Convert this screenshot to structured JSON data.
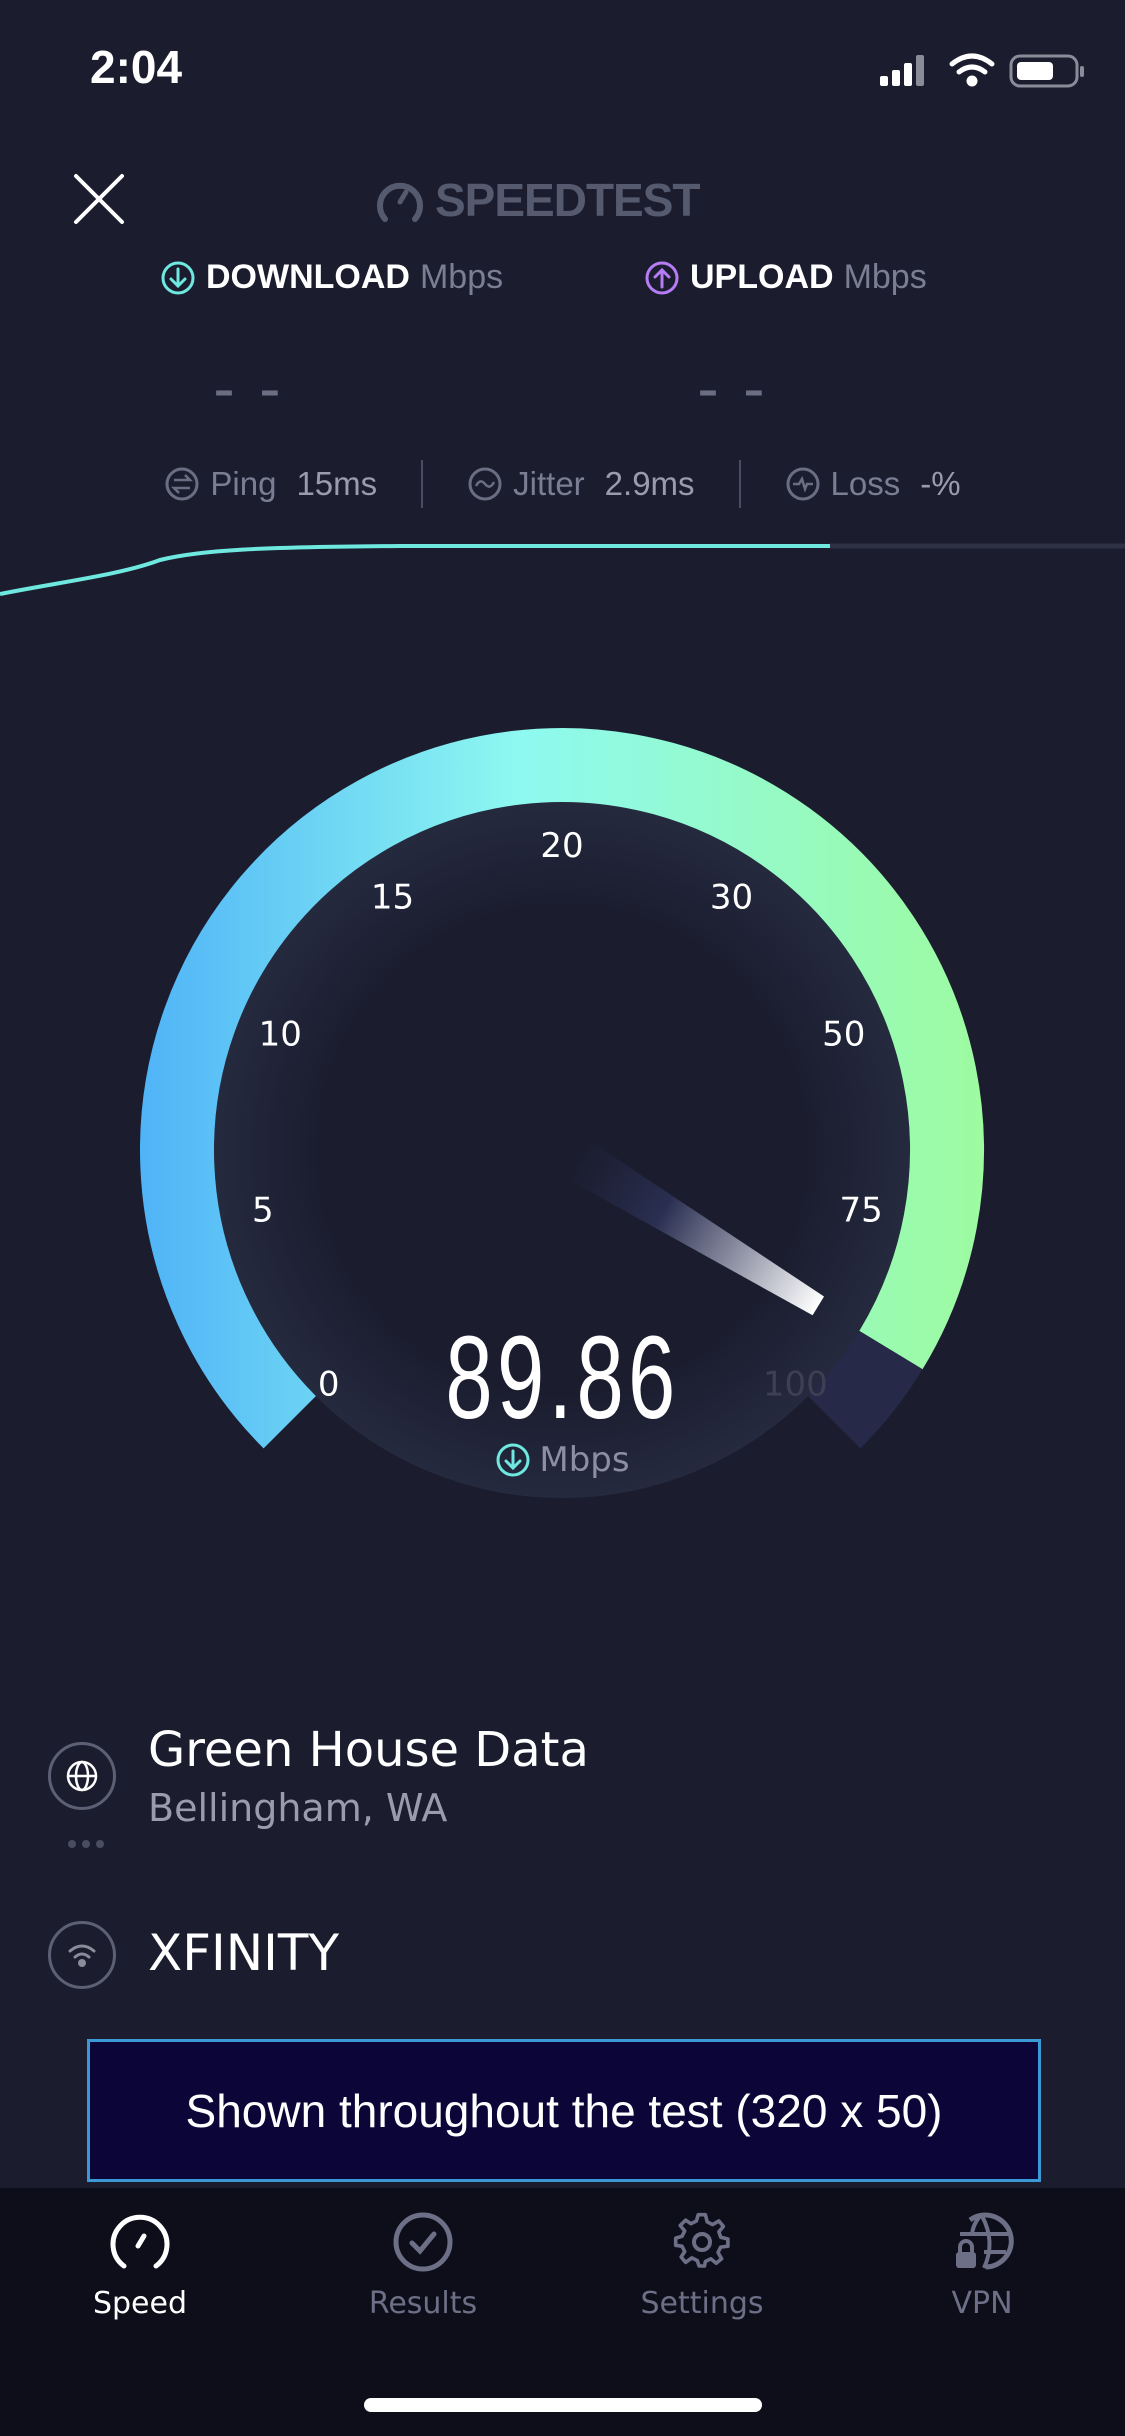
{
  "status_bar": {
    "time": "2:04",
    "icons": [
      "cellular-signal-icon",
      "wifi-icon",
      "battery-icon"
    ]
  },
  "header": {
    "close_icon": "close-icon",
    "logo_text": "SPEEDTEST"
  },
  "metrics": {
    "download": {
      "label": "DOWNLOAD",
      "unit": "Mbps",
      "value": "– –",
      "color": "#6fe8e0"
    },
    "upload": {
      "label": "UPLOAD",
      "unit": "Mbps",
      "value": "– –",
      "color": "#b57cf5"
    }
  },
  "stats": [
    {
      "label": "Ping",
      "value": "15ms",
      "icon": "ping-icon"
    },
    {
      "label": "Jitter",
      "value": "2.9ms",
      "icon": "jitter-icon"
    },
    {
      "label": "Loss",
      "value": "-%",
      "icon": "loss-icon"
    }
  ],
  "gauge": {
    "value": 89.86,
    "display_value": "89.86",
    "unit": "Mbps",
    "scale": [
      "0",
      "5",
      "10",
      "15",
      "20",
      "30",
      "50",
      "75",
      "100"
    ],
    "colors": {
      "start": "#4fb3f7",
      "mid": "#8ef9f0",
      "end": "#9dfb9f",
      "track": "#262a48"
    }
  },
  "server": {
    "name": "Green House Data",
    "location": "Bellingham, WA"
  },
  "isp": {
    "name": "XFINITY"
  },
  "ad": {
    "text": "Shown throughout the test (320 x 50)"
  },
  "tabs": [
    {
      "label": "Speed",
      "icon": "speedometer-icon",
      "active": true
    },
    {
      "label": "Results",
      "icon": "checkmark-circle-icon",
      "active": false
    },
    {
      "label": "Settings",
      "icon": "gear-icon",
      "active": false
    },
    {
      "label": "VPN",
      "icon": "vpn-globe-lock-icon",
      "active": false
    }
  ]
}
